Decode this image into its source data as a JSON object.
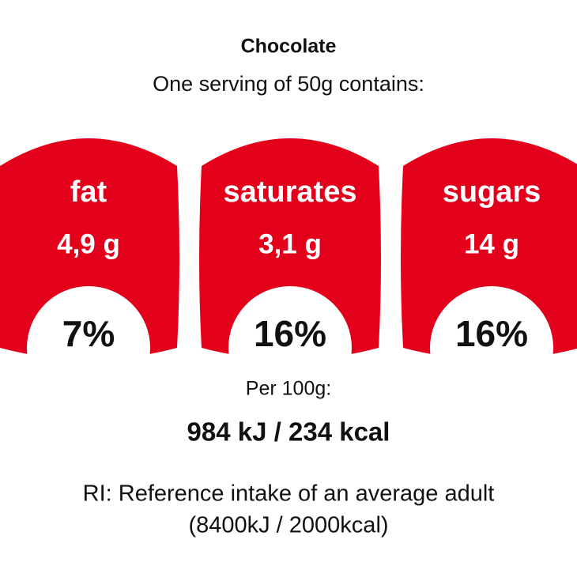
{
  "title": "Chocolate",
  "subtitle": "One serving of 50g contains:",
  "nutrients": [
    {
      "name": "fat",
      "amount": "4,9 g",
      "percent": "7%"
    },
    {
      "name": "saturates",
      "amount": "3,1 g",
      "percent": "16%"
    },
    {
      "name": "sugars",
      "amount": "14 g",
      "percent": "16%"
    }
  ],
  "per_label": "Per 100g:",
  "energy": "984 kJ / 234 kcal",
  "footnote": [
    "RI: Reference intake of an average adult",
    "(8400kJ / 2000kcal)"
  ]
}
